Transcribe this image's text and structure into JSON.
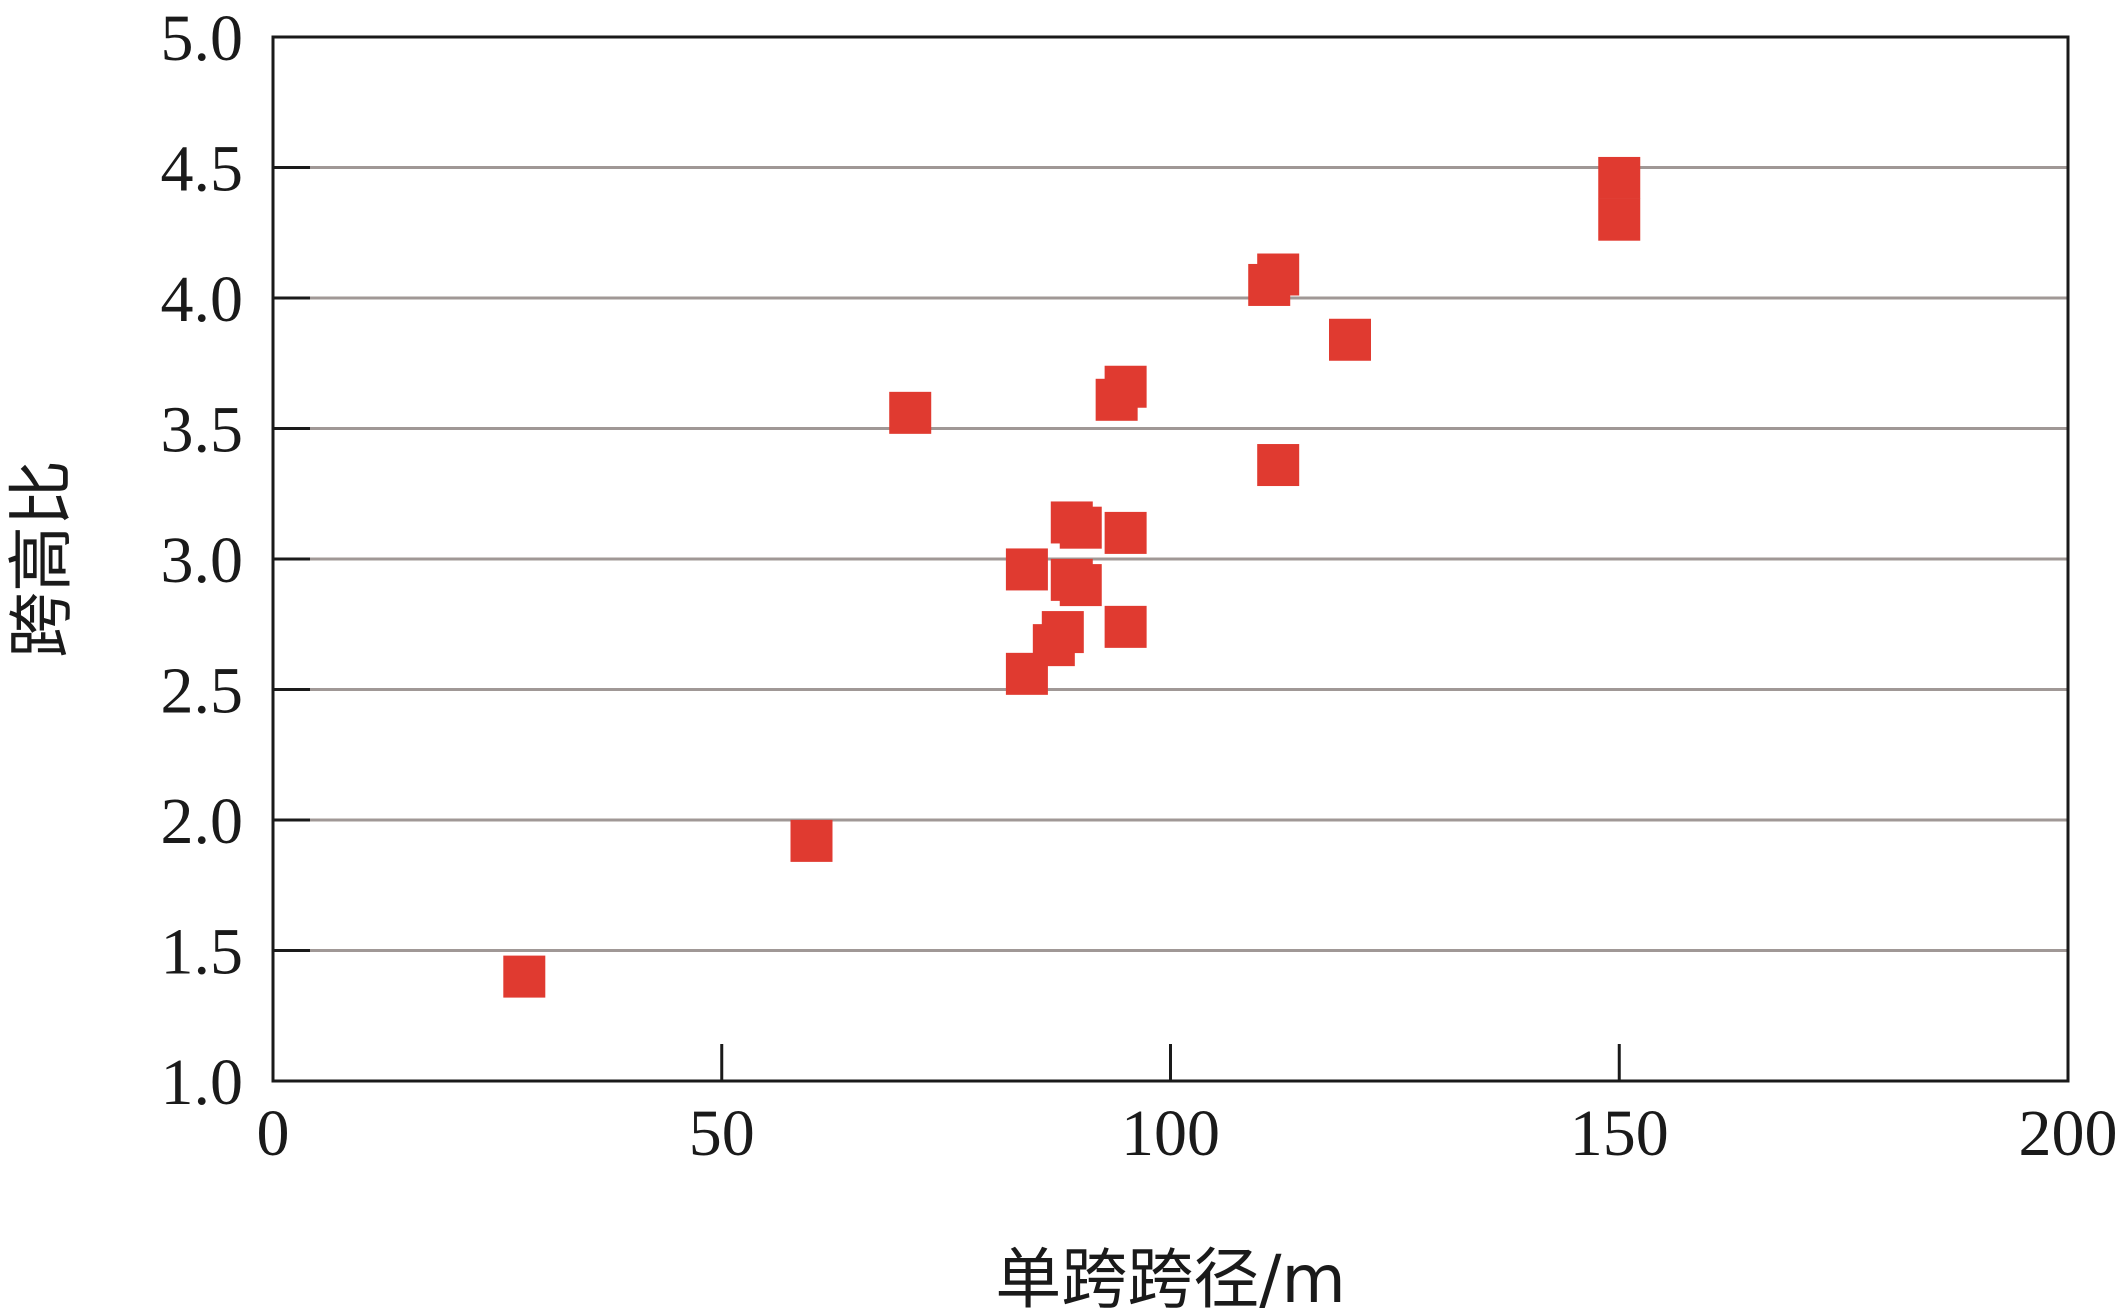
{
  "chart_data": {
    "type": "scatter",
    "xlabel": "单跨跨径/m",
    "ylabel": "跨高比",
    "xlim": [
      0,
      200
    ],
    "ylim": [
      1.0,
      5.0
    ],
    "xticks": [
      0,
      50,
      100,
      150,
      200
    ],
    "yticks": [
      1.0,
      1.5,
      2.0,
      2.5,
      3.0,
      3.5,
      4.0,
      4.5,
      5.0
    ],
    "xtick_labels": [
      "0",
      "50",
      "100",
      "150",
      "200"
    ],
    "ytick_labels": [
      "1.0",
      "1.5",
      "2.0",
      "2.5",
      "3.0",
      "3.5",
      "4.0",
      "4.5",
      "5.0"
    ],
    "grid": "horizontal",
    "marker": "square",
    "marker_color": "#e03a30",
    "series": [
      {
        "points": [
          {
            "x": 28,
            "y": 1.4
          },
          {
            "x": 60,
            "y": 1.92
          },
          {
            "x": 71,
            "y": 3.56
          },
          {
            "x": 84,
            "y": 2.56
          },
          {
            "x": 84,
            "y": 2.96
          },
          {
            "x": 87,
            "y": 2.67
          },
          {
            "x": 88,
            "y": 2.72
          },
          {
            "x": 89,
            "y": 3.14
          },
          {
            "x": 89,
            "y": 2.92
          },
          {
            "x": 90,
            "y": 3.12
          },
          {
            "x": 90,
            "y": 2.9
          },
          {
            "x": 95,
            "y": 3.1
          },
          {
            "x": 95,
            "y": 2.74
          },
          {
            "x": 94,
            "y": 3.61
          },
          {
            "x": 95,
            "y": 3.66
          },
          {
            "x": 111,
            "y": 4.05
          },
          {
            "x": 112,
            "y": 4.09
          },
          {
            "x": 112,
            "y": 3.36
          },
          {
            "x": 120,
            "y": 3.84
          },
          {
            "x": 150,
            "y": 4.46
          },
          {
            "x": 150,
            "y": 4.3
          }
        ]
      }
    ]
  }
}
